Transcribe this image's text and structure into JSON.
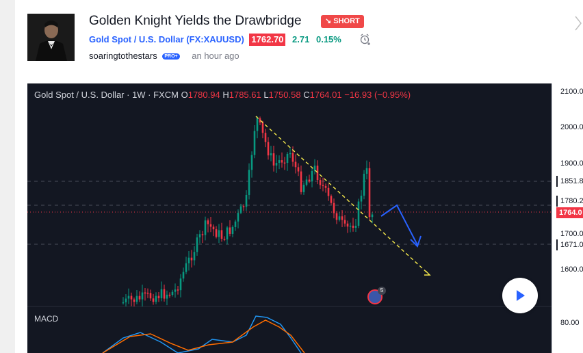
{
  "idea": {
    "title": "Golden Knight Yields the Drawbridge",
    "badge": "SHORT",
    "symbol_name": "Gold Spot / U.S. Dollar",
    "symbol_ticker": "(FX:XAUUSD)",
    "price": "1762.70",
    "change": "2.71",
    "change_pct": "0.15%",
    "author": "soaringtothestars",
    "author_badge": "PRO+",
    "posted": "an hour ago"
  },
  "legend": {
    "symbol": "Gold Spot / U.S. Dollar",
    "interval": "1W",
    "exchange": "FXCM",
    "o_label": "O",
    "o": "1780.94",
    "h_label": "H",
    "h": "1785.61",
    "l_label": "L",
    "l": "1750.58",
    "c_label": "C",
    "c": "1764.01",
    "chg": "−16.93 (−0.95%)"
  },
  "price_axis": {
    "ticks": [
      "2100.00",
      "2000.00",
      "1900.00",
      "1700.00",
      "1600.00",
      "80.00"
    ],
    "tags": [
      "1851.8",
      "1780.2",
      "1764.0",
      "1671.0"
    ]
  },
  "macd_label": "MACD",
  "flag_count": "5",
  "colors": {
    "up": "#089981",
    "down": "#f23645",
    "bg": "#131722",
    "accent": "#2962ff",
    "trend": "#f5e94c"
  },
  "icons": {
    "alarm": "alarm-clock-plus-icon",
    "next": "chevron-right-icon",
    "play": "play-icon",
    "flag": "us-flag-icon"
  }
}
